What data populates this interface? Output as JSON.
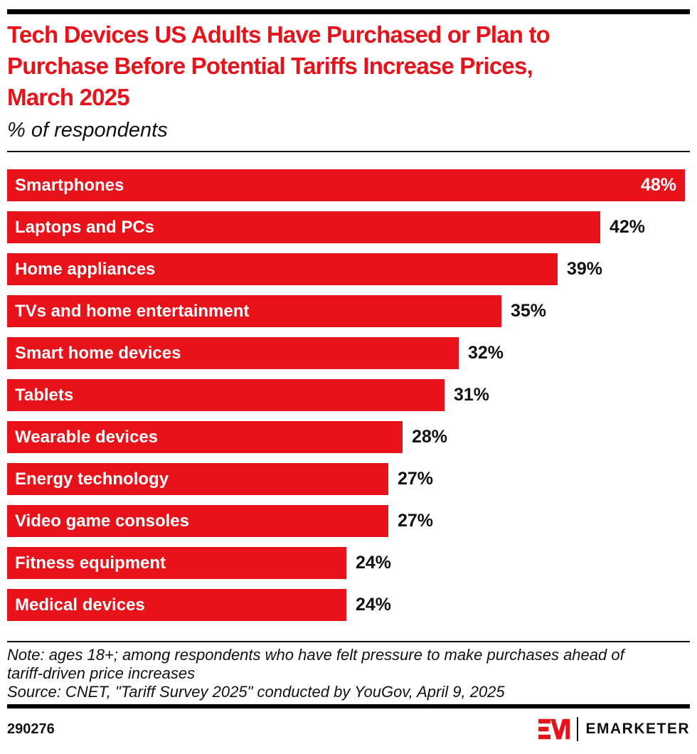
{
  "meta": {
    "accent_red": "#e8131a",
    "text_color": "#111111",
    "background": "#ffffff"
  },
  "header": {
    "title": "Tech Devices US Adults Have Purchased or Plan to Purchase Before Potential Tariffs Increase Prices, March 2025",
    "title_lines": [
      "Tech Devices US Adults Have Purchased or Plan to",
      "Purchase Before Potential Tariffs Increase Prices,",
      "March 2025"
    ],
    "subtitle": "% of respondents"
  },
  "chart_data": {
    "type": "bar",
    "orientation": "horizontal",
    "title": "Tech Devices US Adults Have Purchased or Plan to Purchase Before Potential Tariffs Increase Prices, March 2025",
    "subtitle": "% of respondents",
    "unit": "%",
    "xlabel": "",
    "ylabel": "",
    "xlim": [
      0,
      48.4
    ],
    "grid": false,
    "legend": false,
    "bar_color": "#e8131a",
    "categories": [
      "Smartphones",
      "Laptops and PCs",
      "Home appliances",
      "TVs and home entertainment",
      "Smart home devices",
      "Tablets",
      "Wearable devices",
      "Energy technology",
      "Video game consoles",
      "Fitness equipment",
      "Medical devices"
    ],
    "values": [
      48,
      42,
      39,
      35,
      32,
      31,
      28,
      27,
      27,
      24,
      24
    ],
    "value_labels": [
      "48%",
      "42%",
      "39%",
      "35%",
      "32%",
      "31%",
      "28%",
      "27%",
      "27%",
      "24%",
      "24%"
    ]
  },
  "footnote": {
    "note_lines": [
      "Note: ages 18+; among respondents who have felt pressure to make purchases ahead of",
      "tariff-driven price increases",
      "Source: CNET, \"Tariff Survey 2025\" conducted by YouGov, April 9, 2025"
    ]
  },
  "footer": {
    "chart_id": "290276",
    "brand": "EMARKETER"
  }
}
